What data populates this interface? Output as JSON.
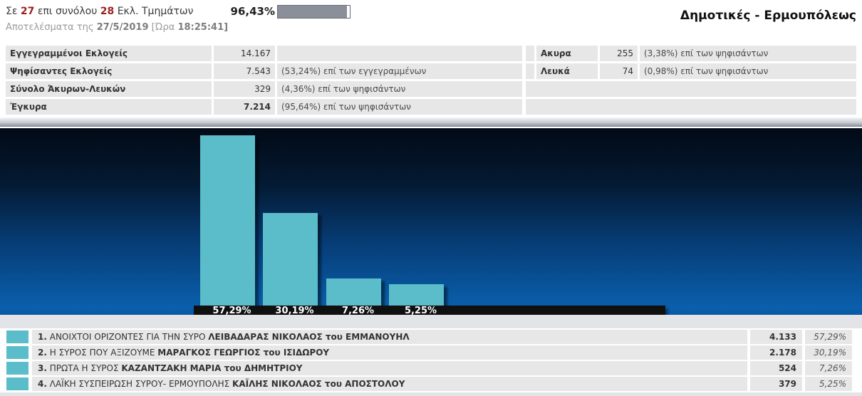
{
  "header": {
    "coverage": {
      "prefix": "Σε",
      "count": "27",
      "of_text": "επι συνόλου",
      "total": "28",
      "suffix": "Εκλ. Τμημάτων"
    },
    "progress": {
      "percent_label": "96,43%",
      "percent_value": 96.43
    },
    "results_meta": {
      "prefix": "Αποτελέσματα της",
      "date": "27/5/2019",
      "time_label": "[Ώρα",
      "time": "18:25:41]"
    },
    "page_title": "Δημοτικές - Ερμουπόλεως"
  },
  "summary_left": {
    "rows": [
      {
        "label": "Εγγεγραμμένοι Εκλογείς",
        "value": "14.167",
        "note": ""
      },
      {
        "label": "Ψηφίσαντες Εκλογείς",
        "value": "7.543",
        "note": "(53,24%) επί των εγγεγραμμένων"
      },
      {
        "label": "Σύνολο Άκυρων-Λευκών",
        "value": "329",
        "note": "(4,36%) επί των ψηφισάντων"
      },
      {
        "label": "Έγκυρα",
        "value": "7.214",
        "note": "(95,64%) επί των ψηφισάντων"
      }
    ]
  },
  "summary_right": {
    "rows": [
      {
        "label": "Ακυρα",
        "value": "255",
        "note": "(3,38%) επί των ψηφισάντων"
      },
      {
        "label": "Λευκά",
        "value": "74",
        "note": "(0,98%) επί των ψηφισάντων"
      }
    ]
  },
  "chart_data": {
    "type": "bar",
    "title": "",
    "xlabel": "",
    "ylabel": "",
    "categories": [
      "ΑΝΟΙΧΤΟΙ ΟΡΙΖΟΝΤΕΣ ΓΙΑ ΤΗΝ ΣΥΡΟ",
      "Η ΣΥΡΟΣ ΠΟΥ ΑΞΙΖΟΥΜΕ",
      "ΠΡΩΤΑ Η ΣΥΡΟΣ",
      "ΛΑΪΚΗ ΣΥΣΠΕΙΡΩΣΗ ΣΥΡΟΥ- ΕΡΜΟΥΠΟΛΗΣ"
    ],
    "values": [
      57.29,
      30.19,
      7.26,
      5.25
    ],
    "value_labels": [
      "57,29%",
      "30,19%",
      "7,26%",
      "5,25%"
    ],
    "bar_color": "#5cbdca",
    "ylim": [
      0,
      60
    ],
    "grid": false,
    "legend_position": "none"
  },
  "results_table": {
    "rows": [
      {
        "rank": "1.",
        "party": "ΑΝΟΙΧΤΟΙ ΟΡΙΖΟΝΤΕΣ ΓΙΑ ΤΗΝ ΣΥΡΟ",
        "candidate": "ΛΕΙΒΑΔΑΡΑΣ ΝΙΚΟΛΑΟΣ του ΕΜΜΑΝΟΥΗΛ",
        "votes": "4.133",
        "percent": "57,29%",
        "color": "#5cbdca"
      },
      {
        "rank": "2.",
        "party": "Η ΣΥΡΟΣ ΠΟΥ ΑΞΙΖΟΥΜΕ",
        "candidate": "ΜΑΡΑΓΚΟΣ ΓΕΩΡΓΙΟΣ του ΙΣΙΔΩΡΟΥ",
        "votes": "2.178",
        "percent": "30,19%",
        "color": "#5cbdca"
      },
      {
        "rank": "3.",
        "party": "ΠΡΩΤΑ Η ΣΥΡΟΣ",
        "candidate": "ΚΑΖΑΝΤΖΑΚΗ ΜΑΡΙΑ του ΔΗΜΗΤΡΙΟΥ",
        "votes": "524",
        "percent": "7,26%",
        "color": "#5cbdca"
      },
      {
        "rank": "4.",
        "party": "ΛΑΪΚΗ ΣΥΣΠΕΙΡΩΣΗ ΣΥΡΟΥ- ΕΡΜΟΥΠΟΛΗΣ",
        "candidate": "ΚΑΪΛΗΣ ΝΙΚΟΛΑΟΣ του ΑΠΟΣΤΟΛΟΥ",
        "votes": "379",
        "percent": "5,25%",
        "color": "#5cbdca"
      }
    ]
  }
}
